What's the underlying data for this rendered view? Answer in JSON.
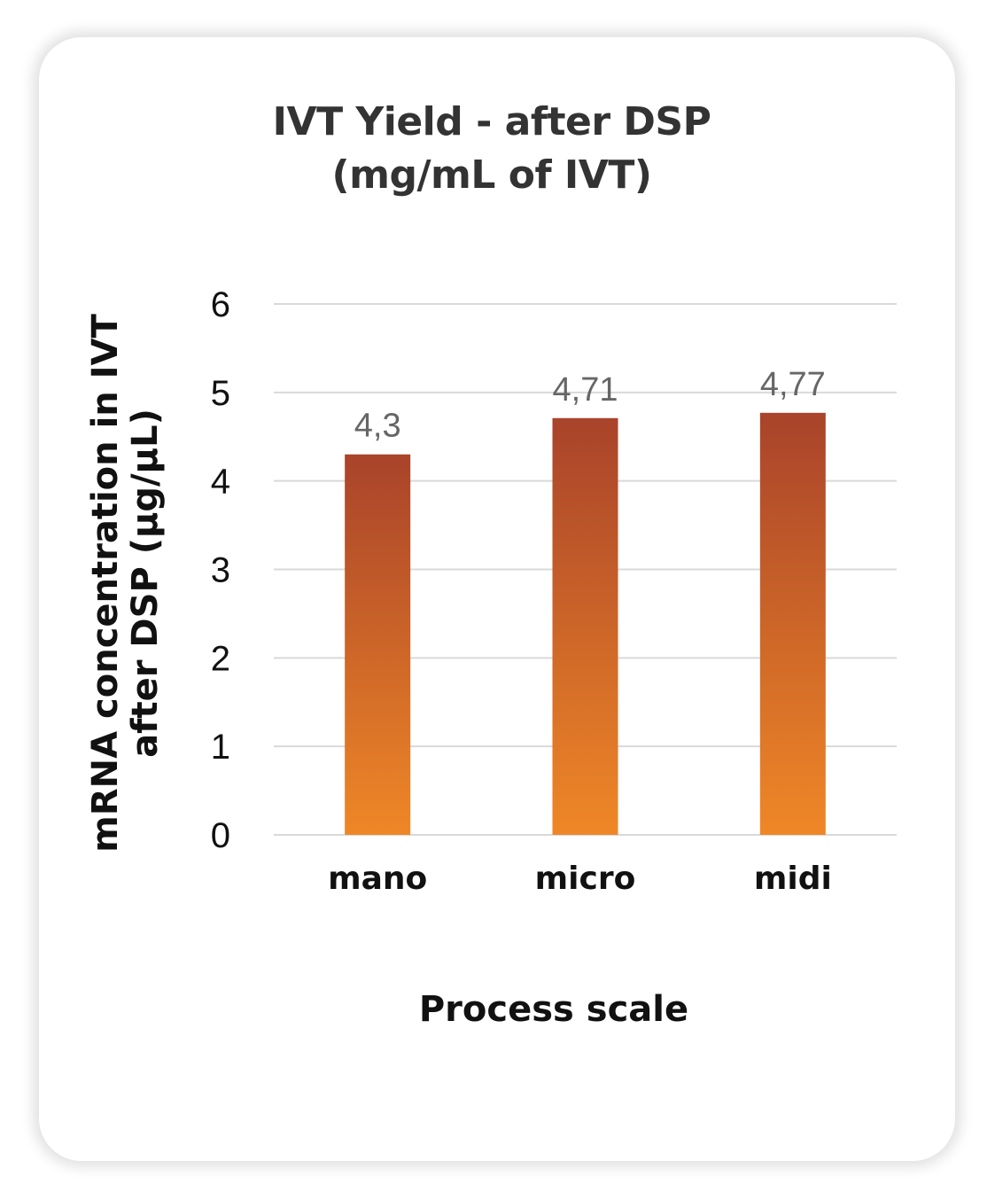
{
  "chart_data": {
    "type": "bar",
    "title_lines": [
      "IVT Yield - after DSP",
      "(mg/mL of IVT)"
    ],
    "categories": [
      "mano",
      "micro",
      "midi"
    ],
    "values": [
      4.3,
      4.71,
      4.77
    ],
    "data_labels": [
      "4,3",
      "4,71",
      "4,77"
    ],
    "xlabel": "Process scale",
    "ylabel_lines": [
      "mRNA concentration in IVT",
      "after DSP (µg/µL)"
    ],
    "ylim": [
      0,
      6
    ],
    "yticks": [
      0,
      1,
      2,
      3,
      4,
      5,
      6
    ],
    "grid": true,
    "legend": "none",
    "bar_color_top": "#a9432a",
    "bar_color_bottom": "#ef8727",
    "grid_color": "#d9d9d9"
  }
}
